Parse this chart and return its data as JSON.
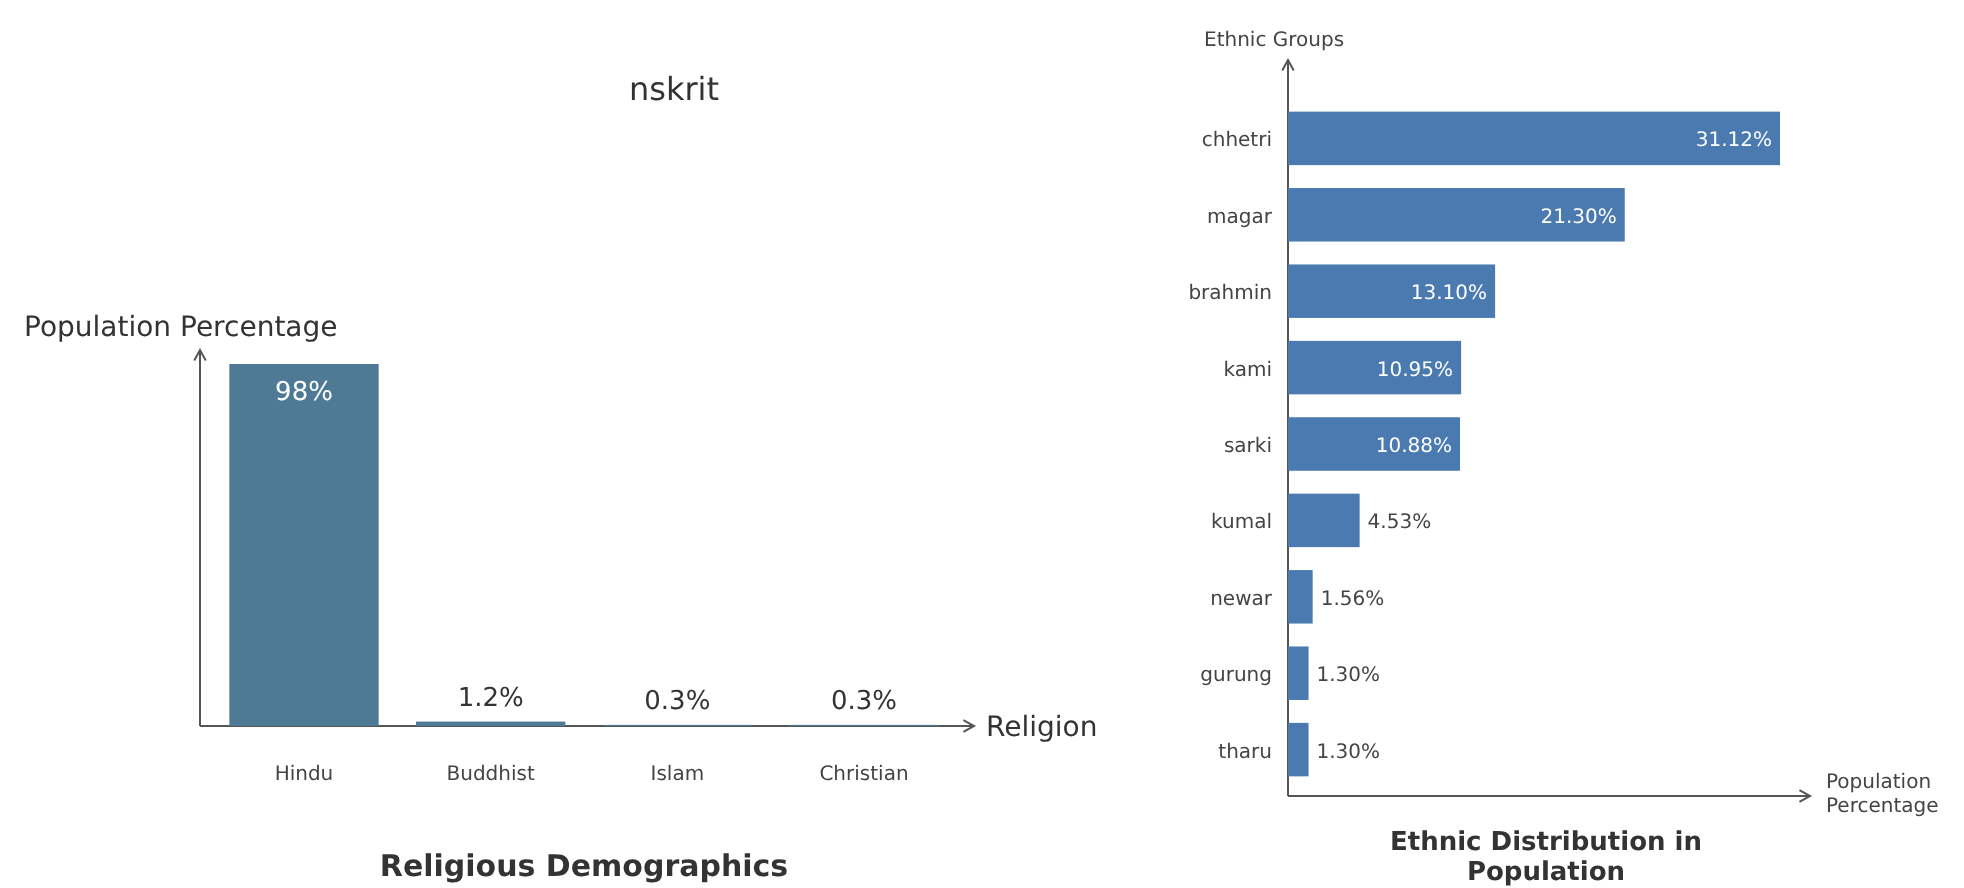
{
  "chart_data": [
    {
      "type": "bar",
      "title": "Religious Demographics",
      "annotations": [
        "nskrit"
      ],
      "xlabel": "Religion",
      "ylabel": "Population Percentage",
      "categories": [
        "Hindu",
        "Buddhist",
        "Islam",
        "Christian"
      ],
      "values": [
        98,
        1.2,
        0.3,
        0.3
      ],
      "value_labels": [
        "98%",
        "1.2%",
        "0.3%",
        "0.3%"
      ],
      "color": "#4e7a96"
    },
    {
      "type": "bar",
      "orientation": "horizontal",
      "title": "Ethnic Distribution in Population",
      "xlabel": "Population Percentage",
      "ylabel": "Ethnic Groups",
      "categories": [
        "chhetri",
        "magar",
        "brahmin",
        "kami",
        "sarki",
        "kumal",
        "newar",
        "gurung",
        "tharu"
      ],
      "values": [
        31.12,
        21.3,
        13.1,
        10.95,
        10.88,
        4.53,
        1.56,
        1.3,
        1.3
      ],
      "value_labels": [
        "31.12%",
        "21.30%",
        "13.10%",
        "10.95%",
        "10.88%",
        "4.53%",
        "1.56%",
        "1.30%",
        "1.30%"
      ],
      "color": "#4a7ab0"
    }
  ]
}
